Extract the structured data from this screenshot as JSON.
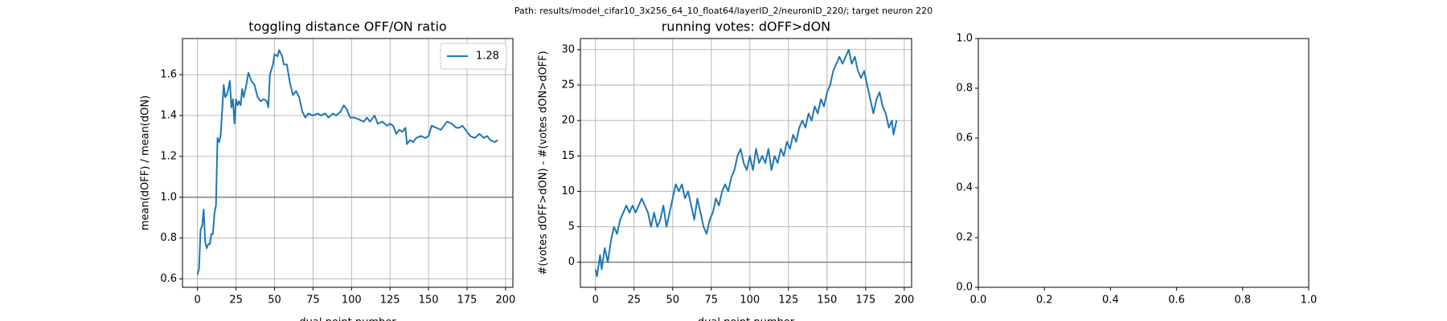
{
  "suptitle": "Path: results/model_cifar10_3x256_64_10_float64/layerID_2/neuronID_220/; target neuron 220",
  "chart_data": [
    {
      "type": "line",
      "title": "toggling distance OFF/ON ratio",
      "xlabel": "dual point number",
      "ylabel": "mean(dOFF) / mean(dON)",
      "x": [
        0,
        1,
        2,
        3,
        4,
        5,
        6,
        7,
        8,
        9,
        10,
        11,
        12,
        13,
        14,
        15,
        16,
        17,
        18,
        19,
        20,
        21,
        22,
        23,
        24,
        25,
        26,
        27,
        28,
        29,
        30,
        32,
        33,
        35,
        37,
        39,
        41,
        43,
        45,
        46,
        47,
        49,
        50,
        52,
        53,
        55,
        56,
        58,
        60,
        62,
        64,
        66,
        68,
        70,
        72,
        75,
        78,
        80,
        83,
        85,
        88,
        90,
        93,
        95,
        97,
        99,
        102,
        105,
        108,
        110,
        112,
        115,
        117,
        120,
        123,
        125,
        127,
        129,
        131,
        133,
        135,
        136,
        138,
        140,
        142,
        145,
        148,
        150,
        152,
        155,
        158,
        160,
        162,
        165,
        168,
        170,
        172,
        175,
        177,
        180,
        183,
        186,
        188,
        190,
        193,
        195
      ],
      "series": [
        {
          "name": "1.28",
          "color": "#1f77b4",
          "values": [
            0.62,
            0.65,
            0.84,
            0.86,
            0.94,
            0.78,
            0.75,
            0.77,
            0.77,
            0.82,
            0.82,
            0.92,
            0.96,
            1.29,
            1.27,
            1.3,
            1.42,
            1.55,
            1.49,
            1.5,
            1.53,
            1.57,
            1.44,
            1.48,
            1.36,
            1.48,
            1.45,
            1.47,
            1.45,
            1.53,
            1.49,
            1.56,
            1.61,
            1.57,
            1.55,
            1.49,
            1.47,
            1.48,
            1.47,
            1.44,
            1.6,
            1.65,
            1.7,
            1.69,
            1.72,
            1.69,
            1.65,
            1.65,
            1.56,
            1.5,
            1.52,
            1.49,
            1.42,
            1.39,
            1.41,
            1.4,
            1.41,
            1.4,
            1.41,
            1.39,
            1.41,
            1.4,
            1.42,
            1.45,
            1.43,
            1.39,
            1.39,
            1.38,
            1.37,
            1.39,
            1.37,
            1.4,
            1.36,
            1.37,
            1.35,
            1.36,
            1.35,
            1.31,
            1.33,
            1.32,
            1.34,
            1.26,
            1.28,
            1.27,
            1.29,
            1.3,
            1.29,
            1.3,
            1.35,
            1.34,
            1.33,
            1.35,
            1.37,
            1.36,
            1.34,
            1.34,
            1.35,
            1.32,
            1.3,
            1.29,
            1.31,
            1.29,
            1.3,
            1.28,
            1.27,
            1.28
          ]
        }
      ],
      "xlim": [
        -9.75,
        204.75
      ],
      "xticks": [
        0,
        25,
        50,
        75,
        100,
        125,
        150,
        175,
        200
      ],
      "ylim": [
        0.559,
        1.777
      ],
      "yticks": [
        0.6,
        0.8,
        {
          "value": 1,
          "label": "1.0"
        },
        1.2,
        1.4,
        1.6
      ],
      "hline": 1,
      "hline_color": "#808080",
      "grid": true,
      "legend": "upper right"
    },
    {
      "type": "line",
      "title": "running votes: dOFF>dON",
      "xlabel": "dual point number",
      "ylabel": "#(votes dOFF>dON) - #(votes dON>dOFF)",
      "x": [
        0,
        1,
        3,
        4,
        6,
        8,
        10,
        12,
        14,
        16,
        18,
        20,
        22,
        24,
        26,
        28,
        30,
        32,
        34,
        36,
        38,
        40,
        42,
        44,
        46,
        48,
        50,
        52,
        54,
        56,
        58,
        60,
        62,
        64,
        66,
        68,
        70,
        72,
        74,
        76,
        78,
        80,
        82,
        84,
        86,
        88,
        90,
        92,
        94,
        96,
        98,
        100,
        102,
        104,
        106,
        108,
        110,
        112,
        114,
        116,
        118,
        120,
        122,
        124,
        126,
        128,
        130,
        132,
        134,
        136,
        138,
        140,
        142,
        144,
        146,
        148,
        150,
        152,
        154,
        156,
        158,
        160,
        162,
        164,
        166,
        168,
        170,
        172,
        174,
        176,
        178,
        180,
        182,
        184,
        186,
        188,
        190,
        192,
        193,
        195
      ],
      "series": [
        {
          "color": "#1f77b4",
          "values": [
            -1,
            -2,
            1,
            -1,
            2,
            0,
            3,
            5,
            4,
            6,
            7,
            8,
            7,
            8,
            7,
            8,
            9,
            8,
            7,
            5,
            7,
            5,
            6,
            8,
            5,
            7,
            9,
            11,
            10,
            11,
            9,
            10,
            8,
            6,
            9,
            7,
            5,
            4,
            6,
            7,
            9,
            8,
            10,
            11,
            10,
            12,
            13,
            15,
            16,
            14,
            13,
            15,
            13,
            16,
            14,
            15,
            14,
            16,
            13,
            15,
            14,
            16,
            15,
            17,
            16,
            18,
            17,
            19,
            20,
            19,
            21,
            20,
            22,
            21,
            23,
            22,
            24,
            25,
            27,
            28,
            29,
            28,
            29,
            30,
            28,
            29,
            27,
            26,
            27,
            25,
            23,
            21,
            23,
            24,
            22,
            21,
            19,
            20,
            18,
            20
          ]
        }
      ],
      "xlim": [
        -9.75,
        204.75
      ],
      "xticks": [
        0,
        25,
        50,
        75,
        100,
        125,
        150,
        175,
        200
      ],
      "ylim": [
        -3.54,
        31.57
      ],
      "yticks": [
        0,
        5,
        10,
        15,
        20,
        25,
        30
      ],
      "hline": 0,
      "hline_color": "#808080",
      "grid": true
    },
    {
      "type": "line",
      "xlim": [
        0,
        1
      ],
      "xticks": [
        {
          "value": 0,
          "label": "0.0"
        },
        0.2,
        0.4,
        0.6,
        0.8,
        {
          "value": 1,
          "label": "1.0"
        }
      ],
      "ylim": [
        0,
        1
      ],
      "yticks": [
        {
          "value": 0,
          "label": "0.0"
        },
        0.2,
        0.4,
        0.6,
        0.8,
        {
          "value": 1,
          "label": "1.0"
        }
      ],
      "grid": false
    }
  ]
}
